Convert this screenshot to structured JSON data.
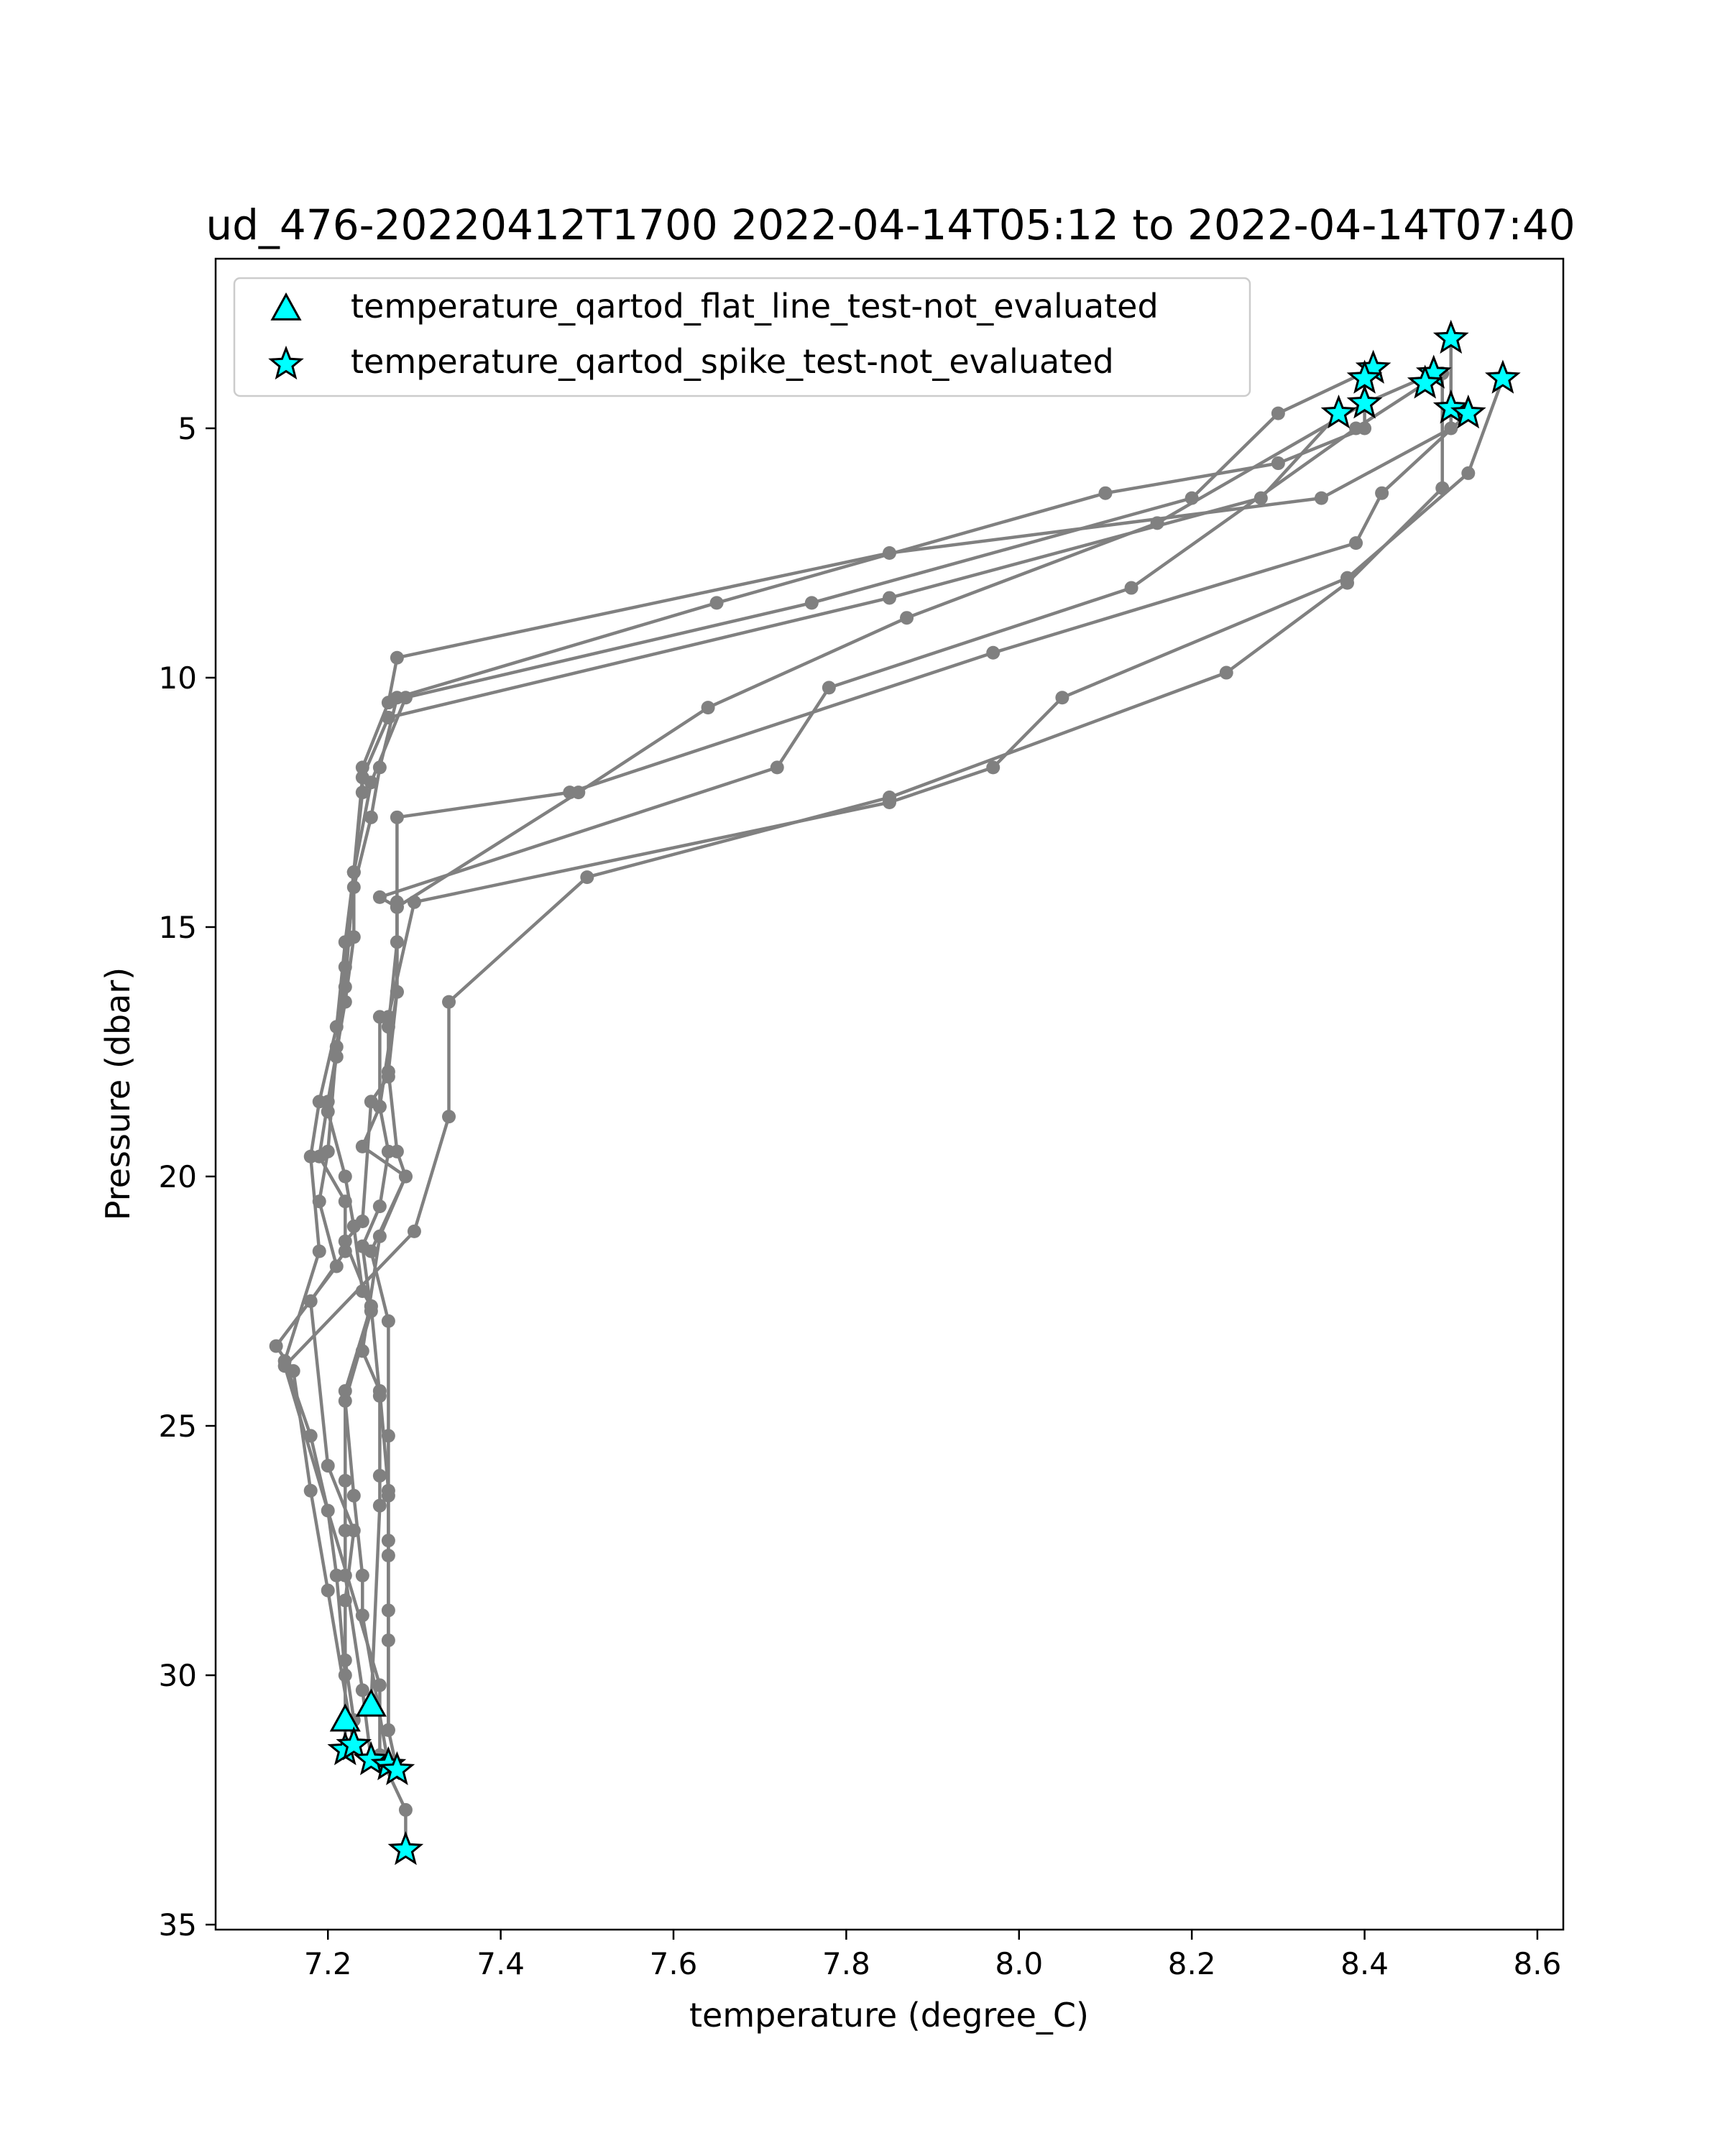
{
  "chart_data": {
    "type": "line",
    "title": "ud_476-20220412T1700 2022-04-14T05:12 to 2022-04-14T07:40",
    "xlabel": "temperature (degree_C)",
    "ylabel": "Pressure (dbar)",
    "xlim": [
      7.07,
      8.63
    ],
    "ylim": [
      35.1,
      1.6
    ],
    "y_inverted": true,
    "x_ticks": [
      7.2,
      7.4,
      7.6,
      7.8,
      8.0,
      8.2,
      8.4,
      8.6
    ],
    "x_tick_labels": [
      "7.2",
      "7.4",
      "7.6",
      "7.8",
      "8.0",
      "8.2",
      "8.4",
      "8.6"
    ],
    "y_ticks": [
      5,
      10,
      15,
      20,
      25,
      30,
      35
    ],
    "y_tick_labels": [
      "5",
      "10",
      "15",
      "20",
      "25",
      "30",
      "35"
    ],
    "grid": false,
    "legend": {
      "placement": "upper-left",
      "entries": [
        {
          "label": "temperature_qartod_flat_line_test-not_evaluated",
          "marker": "triangle"
        },
        {
          "label": "temperature_qartod_spike_test-not_evaluated",
          "marker": "star"
        }
      ]
    },
    "colors": {
      "profile_line": "#808080",
      "flag_fill": "#00ffff",
      "flag_edge": "#000000"
    },
    "series": [
      {
        "points": [
          [
            8.5,
            3.2
          ],
          [
            8.5,
            5.0
          ],
          [
            8.35,
            6.4
          ],
          [
            7.85,
            7.5
          ],
          [
            7.28,
            9.6
          ],
          [
            7.27,
            10.5
          ],
          [
            7.24,
            11.8
          ],
          [
            7.24,
            12.3
          ],
          [
            7.23,
            13.9
          ],
          [
            7.22,
            15.3
          ],
          [
            7.21,
            17.0
          ],
          [
            7.19,
            18.5
          ],
          [
            7.18,
            19.6
          ],
          [
            7.19,
            21.5
          ],
          [
            7.15,
            23.7
          ],
          [
            7.18,
            25.2
          ],
          [
            7.2,
            26.7
          ],
          [
            7.21,
            28.0
          ],
          [
            7.22,
            30.0
          ],
          [
            7.22,
            31.5
          ]
        ]
      },
      {
        "points": [
          [
            8.4,
            4.0
          ],
          [
            8.4,
            5.0
          ],
          [
            8.3,
            5.7
          ],
          [
            8.1,
            6.3
          ],
          [
            7.65,
            8.5
          ],
          [
            7.28,
            10.4
          ],
          [
            7.26,
            11.8
          ],
          [
            7.25,
            12.8
          ],
          [
            7.23,
            14.2
          ],
          [
            7.22,
            15.8
          ],
          [
            7.21,
            17.4
          ],
          [
            7.2,
            19.5
          ],
          [
            7.19,
            20.5
          ],
          [
            7.21,
            21.8
          ],
          [
            7.14,
            23.4
          ],
          [
            7.16,
            23.9
          ],
          [
            7.18,
            26.3
          ],
          [
            7.2,
            28.3
          ],
          [
            7.23,
            31.4
          ]
        ]
      },
      {
        "points": [
          [
            8.41,
            3.8
          ],
          [
            8.3,
            4.7
          ],
          [
            8.2,
            6.4
          ],
          [
            7.76,
            8.5
          ],
          [
            7.29,
            10.4
          ],
          [
            7.25,
            12.1
          ],
          [
            7.23,
            13.9
          ],
          [
            7.23,
            15.2
          ],
          [
            7.22,
            16.5
          ],
          [
            7.2,
            18.5
          ],
          [
            7.19,
            19.6
          ],
          [
            7.22,
            20.5
          ],
          [
            7.22,
            21.5
          ],
          [
            7.18,
            22.5
          ],
          [
            7.2,
            25.8
          ],
          [
            7.23,
            27.1
          ],
          [
            7.22,
            28.5
          ],
          [
            7.22,
            29.7
          ],
          [
            7.23,
            30.9
          ]
        ]
      },
      {
        "points": [
          [
            8.37,
            4.7
          ],
          [
            8.28,
            6.4
          ],
          [
            7.85,
            8.4
          ],
          [
            7.27,
            10.8
          ],
          [
            7.24,
            12.0
          ],
          [
            7.23,
            13.9
          ],
          [
            7.22,
            16.2
          ],
          [
            7.21,
            17.6
          ],
          [
            7.2,
            18.7
          ],
          [
            7.22,
            20.0
          ],
          [
            7.23,
            21.0
          ],
          [
            7.24,
            22.3
          ],
          [
            7.25,
            22.6
          ],
          [
            7.22,
            24.3
          ],
          [
            7.22,
            26.1
          ],
          [
            7.22,
            27.1
          ],
          [
            7.22,
            28.0
          ],
          [
            7.24,
            30.3
          ],
          [
            7.25,
            31.7
          ]
        ]
      },
      {
        "points": [
          [
            8.48,
            3.9
          ],
          [
            8.4,
            4.5
          ],
          [
            8.16,
            6.9
          ],
          [
            7.87,
            8.8
          ],
          [
            7.64,
            10.6
          ],
          [
            7.49,
            12.3
          ],
          [
            7.28,
            14.6
          ],
          [
            7.28,
            16.3
          ],
          [
            7.26,
            18.6
          ],
          [
            7.27,
            19.5
          ],
          [
            7.26,
            20.6
          ],
          [
            7.24,
            21.4
          ],
          [
            7.25,
            22.7
          ],
          [
            7.22,
            24.5
          ],
          [
            7.23,
            26.4
          ],
          [
            7.24,
            28.0
          ],
          [
            7.24,
            28.8
          ],
          [
            7.27,
            31.8
          ]
        ]
      },
      {
        "points": [
          [
            8.47,
            4.1
          ],
          [
            8.39,
            5.0
          ],
          [
            8.13,
            8.2
          ],
          [
            7.78,
            10.2
          ],
          [
            7.72,
            11.8
          ],
          [
            7.26,
            14.4
          ],
          [
            7.28,
            14.6
          ],
          [
            7.28,
            16.3
          ],
          [
            7.27,
            17.9
          ],
          [
            7.28,
            19.5
          ],
          [
            7.29,
            20.0
          ],
          [
            7.25,
            21.5
          ],
          [
            7.27,
            22.9
          ],
          [
            7.27,
            25.2
          ],
          [
            7.27,
            26.4
          ],
          [
            7.27,
            27.3
          ],
          [
            7.27,
            28.7
          ],
          [
            7.27,
            31.1
          ],
          [
            7.28,
            31.9
          ]
        ]
      },
      {
        "points": [
          [
            8.52,
            4.7
          ],
          [
            8.42,
            6.3
          ],
          [
            8.39,
            7.3
          ],
          [
            7.97,
            9.5
          ],
          [
            7.48,
            12.3
          ],
          [
            7.28,
            12.8
          ],
          [
            7.28,
            14.5
          ],
          [
            7.28,
            15.3
          ],
          [
            7.27,
            17.0
          ],
          [
            7.27,
            18.0
          ],
          [
            7.25,
            18.5
          ],
          [
            7.24,
            20.9
          ],
          [
            7.22,
            21.3
          ],
          [
            7.25,
            22.6
          ],
          [
            7.26,
            24.4
          ],
          [
            7.26,
            26.0
          ],
          [
            7.26,
            26.6
          ],
          [
            7.25,
            30.6
          ]
        ]
      },
      {
        "points": [
          [
            8.56,
            4.0
          ],
          [
            8.52,
            5.9
          ],
          [
            8.38,
            8.0
          ],
          [
            8.05,
            10.4
          ],
          [
            7.97,
            11.8
          ],
          [
            7.85,
            12.5
          ],
          [
            7.3,
            14.5
          ],
          [
            7.27,
            16.8
          ],
          [
            7.26,
            16.8
          ],
          [
            7.26,
            18.6
          ],
          [
            7.24,
            19.4
          ],
          [
            7.29,
            20.0
          ],
          [
            7.26,
            21.2
          ],
          [
            7.24,
            23.5
          ],
          [
            7.26,
            24.3
          ],
          [
            7.27,
            26.3
          ],
          [
            7.27,
            27.6
          ],
          [
            7.27,
            29.3
          ],
          [
            7.27,
            31.1
          ]
        ]
      },
      {
        "points": [
          [
            8.49,
            3.9
          ],
          [
            8.49,
            6.2
          ],
          [
            8.38,
            8.1
          ],
          [
            8.24,
            9.9
          ],
          [
            7.85,
            12.4
          ],
          [
            7.5,
            14.0
          ],
          [
            7.34,
            16.5
          ],
          [
            7.34,
            18.8
          ],
          [
            7.3,
            21.1
          ],
          [
            7.15,
            23.8
          ],
          [
            7.26,
            30.2
          ],
          [
            7.26,
            31.6
          ],
          [
            7.29,
            32.7
          ],
          [
            7.29,
            33.5
          ]
        ]
      }
    ],
    "flat_line_flags": [
      [
        7.25,
        30.6
      ],
      [
        7.22,
        30.9
      ]
    ],
    "spike_flags": [
      [
        8.5,
        3.2
      ],
      [
        8.41,
        3.8
      ],
      [
        8.4,
        4.0
      ],
      [
        8.48,
        3.9
      ],
      [
        8.47,
        4.1
      ],
      [
        8.56,
        4.0
      ],
      [
        8.4,
        4.5
      ],
      [
        8.37,
        4.7
      ],
      [
        8.5,
        4.6
      ],
      [
        8.52,
        4.7
      ],
      [
        7.22,
        31.5
      ],
      [
        7.23,
        31.4
      ],
      [
        7.25,
        31.7
      ],
      [
        7.27,
        31.8
      ],
      [
        7.28,
        31.9
      ],
      [
        7.29,
        33.5
      ]
    ]
  }
}
